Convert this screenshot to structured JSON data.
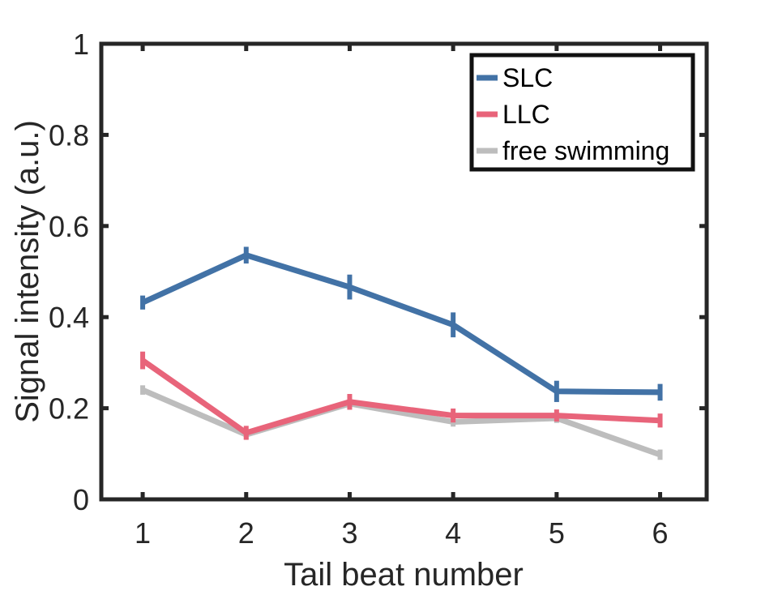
{
  "chart_data": {
    "type": "line",
    "title": "",
    "xlabel": "Tail beat number",
    "ylabel": "Signal intensity (a.u.)",
    "xlim": [
      0.6,
      6.45
    ],
    "ylim": [
      0,
      1
    ],
    "x_ticks": [
      "1",
      "2",
      "3",
      "4",
      "5",
      "6"
    ],
    "y_ticks": [
      "0",
      "0.2",
      "0.4",
      "0.6",
      "0.8",
      "1"
    ],
    "grid": false,
    "legend_position": "top-right",
    "x": [
      1,
      2,
      3,
      4,
      5,
      6
    ],
    "series": [
      {
        "name": "SLC",
        "color": "#4272a6",
        "values": [
          0.432,
          0.536,
          0.466,
          0.383,
          0.237,
          0.235
        ],
        "errors": [
          0.01,
          0.013,
          0.022,
          0.022,
          0.018,
          0.013
        ]
      },
      {
        "name": "LLC",
        "color": "#e8647a",
        "values": [
          0.305,
          0.146,
          0.214,
          0.184,
          0.184,
          0.173
        ],
        "errors": [
          0.014,
          0.01,
          0.012,
          0.01,
          0.008,
          0.01
        ]
      },
      {
        "name": "free swimming",
        "color": "#bdbdbd",
        "values": [
          0.24,
          0.142,
          0.21,
          0.17,
          0.178,
          0.098
        ],
        "errors": [
          0.005,
          0.005,
          0.005,
          0.005,
          0.005,
          0.006
        ]
      }
    ]
  }
}
